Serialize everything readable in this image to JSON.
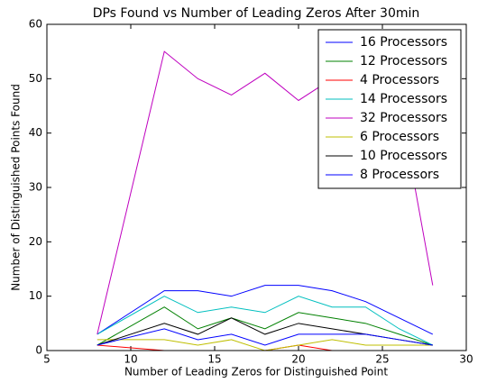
{
  "chart_data": {
    "type": "line",
    "title": "DPs Found vs Number of Leading Zeros After 30min",
    "x_label": "Number of Leading Zeros for Distinguished Point",
    "y_label": "Number of Distinguished Points Found",
    "x": [
      8,
      12,
      14,
      16,
      18,
      20,
      22,
      24,
      26,
      28
    ],
    "series": [
      {
        "name": "16 Processors",
        "color": "#0000ff",
        "values": [
          3,
          11,
          11,
          10,
          12,
          12,
          11,
          9,
          6,
          3
        ]
      },
      {
        "name": "12 Processors",
        "color": "#008000",
        "values": [
          1,
          8,
          4,
          6,
          4,
          7,
          6,
          5,
          3,
          1
        ]
      },
      {
        "name": "4 Processors",
        "color": "#ff0000",
        "values": [
          1,
          0,
          0,
          0,
          0,
          1,
          0,
          0,
          0,
          0
        ]
      },
      {
        "name": "14 Processors",
        "color": "#00bfbf",
        "values": [
          3,
          10,
          7,
          8,
          7,
          10,
          8,
          8,
          4,
          1
        ]
      },
      {
        "name": "32 Processors",
        "color": "#bf00bf",
        "values": [
          3,
          55,
          50,
          47,
          51,
          46,
          50,
          48,
          46,
          12
        ]
      },
      {
        "name": "6 Processors",
        "color": "#bfbf00",
        "values": [
          2,
          2,
          1,
          2,
          0,
          1,
          2,
          1,
          1,
          1
        ]
      },
      {
        "name": "10 Processors",
        "color": "#000000",
        "values": [
          1,
          5,
          3,
          6,
          3,
          5,
          4,
          3,
          2,
          1
        ]
      },
      {
        "name": "8 Processors",
        "color": "#0000ff",
        "values": [
          1,
          4,
          2,
          3,
          1,
          3,
          3,
          3,
          2,
          1
        ]
      }
    ],
    "xlim": [
      5,
      30
    ],
    "xticks": [
      5,
      10,
      15,
      20,
      25,
      30
    ],
    "ylim": [
      0,
      60
    ],
    "yticks": [
      0,
      10,
      20,
      30,
      40,
      50,
      60
    ],
    "legend": "upper right"
  }
}
